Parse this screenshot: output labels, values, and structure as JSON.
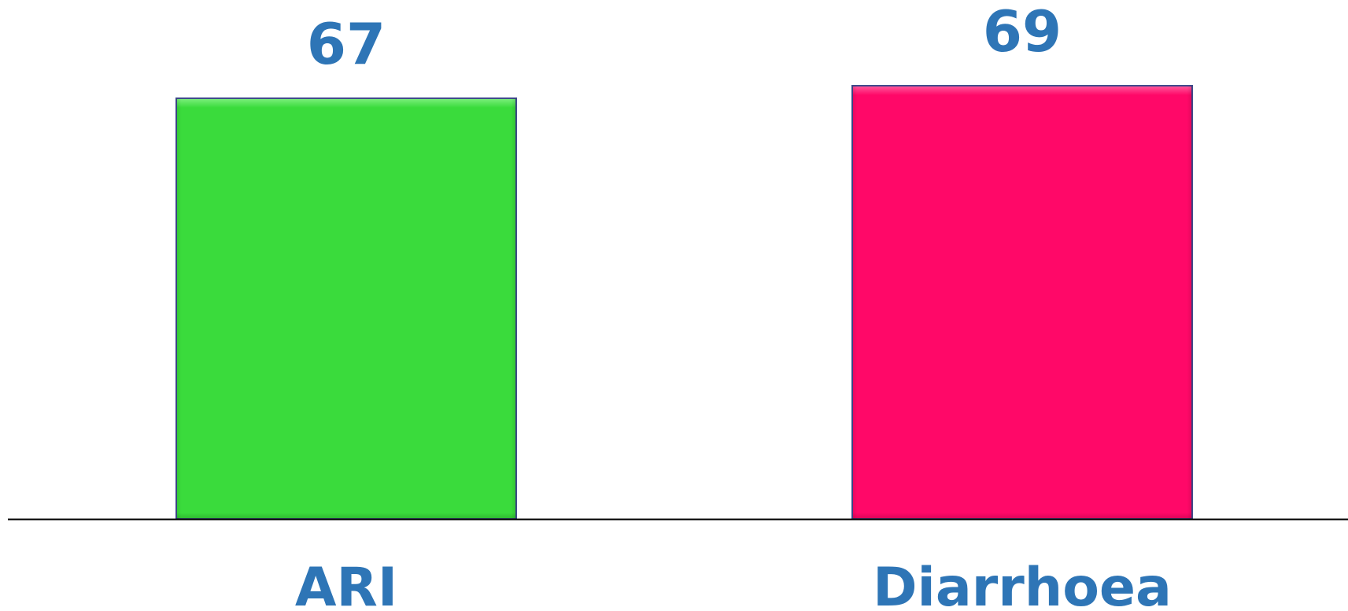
{
  "chart_data": {
    "type": "bar",
    "categories": [
      "ARI",
      "Diarrhoea"
    ],
    "values": [
      67,
      69
    ],
    "data_labels": [
      "67",
      "69"
    ],
    "bar_colors": [
      "#3ADB3C",
      "#FF0868"
    ],
    "bar_highlight_colors": [
      "#7EF07F",
      "#FF5B9D"
    ],
    "bar_shadow_colors": [
      "#2FB731",
      "#D90558"
    ],
    "bar_border_color": "#3F4A8C",
    "label_color": "#2E75B6",
    "axis_color": "#000000",
    "title": "",
    "xlabel": "",
    "ylabel": "",
    "ylim": [
      0,
      69
    ],
    "grid": false,
    "legend": "none"
  }
}
